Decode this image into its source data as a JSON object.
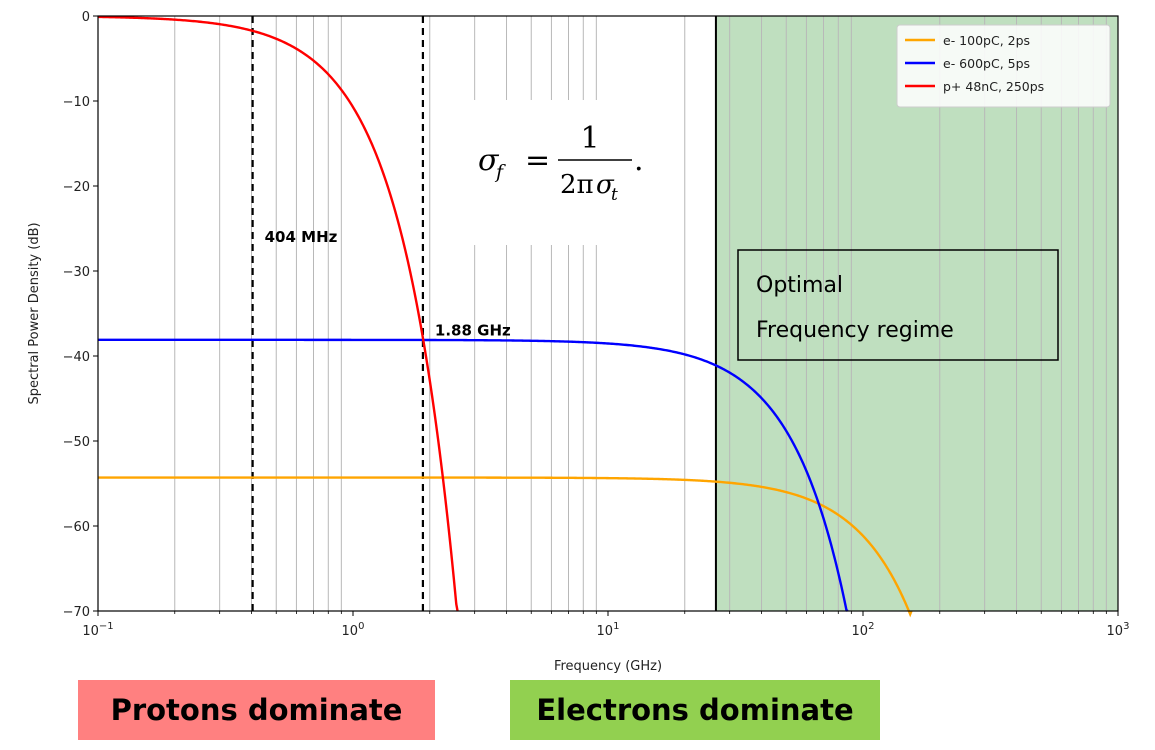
{
  "chart_data": {
    "type": "line",
    "xlabel": "Frequency (GHz)",
    "ylabel": "Spectral Power Density (dB)",
    "xscale": "log",
    "xlim": [
      0.1,
      1000
    ],
    "ylim": [
      -70,
      0
    ],
    "x_ticks": [
      {
        "value": 0.1,
        "base": "10",
        "exp": "−1"
      },
      {
        "value": 1,
        "base": "10",
        "exp": "0"
      },
      {
        "value": 10,
        "base": "10",
        "exp": "1"
      },
      {
        "value": 100,
        "base": "10",
        "exp": "2"
      },
      {
        "value": 1000,
        "base": "10",
        "exp": "3"
      }
    ],
    "y_ticks": [
      {
        "value": 0,
        "label": "0"
      },
      {
        "value": -10,
        "label": "−10"
      },
      {
        "value": -20,
        "label": "−20"
      },
      {
        "value": -30,
        "label": "−30"
      },
      {
        "value": -40,
        "label": "−40"
      },
      {
        "value": -50,
        "label": "−50"
      },
      {
        "value": -60,
        "label": "−60"
      },
      {
        "value": -70,
        "label": "−70"
      }
    ],
    "grid": "vertical minor lines at log decades",
    "legend_position": "top-right",
    "series": [
      {
        "name": "e- 100pC, 2ps",
        "color": "#ffa500",
        "plateau_db": -54.3,
        "sigma_t_ps": 2
      },
      {
        "name": "e- 600pC, 5ps",
        "color": "#0000ff",
        "plateau_db": -38.1,
        "sigma_t_ps": 5
      },
      {
        "name": "p+ 48nC, 250ps",
        "color": "#ff0000",
        "plateau_db": 0,
        "sigma_t_ps": 250
      }
    ],
    "vlines": [
      {
        "x": 0.404,
        "label": "404 MHz",
        "style": "dashed",
        "label_y": -26
      },
      {
        "x": 1.88,
        "label": "1.88 GHz",
        "style": "dashed",
        "label_y": -37
      }
    ],
    "region": {
      "x_start": 26.5,
      "x_end": 1000,
      "color": "#bfdfbf",
      "label_line1": "Optimal",
      "label_line2": "Frequency regime"
    },
    "formula": {
      "lhs": "σ",
      "lhs_sub": "f",
      "eq": "=",
      "numerator": "1",
      "den_prefix": "2π",
      "den_sigma": "σ",
      "den_sub": "t",
      "trail": "."
    }
  },
  "bottom_labels": {
    "protons": {
      "text": "Protons dominate",
      "color": "#ff8080"
    },
    "electrons": {
      "text": "Electrons dominate",
      "color": "#92d050"
    }
  }
}
